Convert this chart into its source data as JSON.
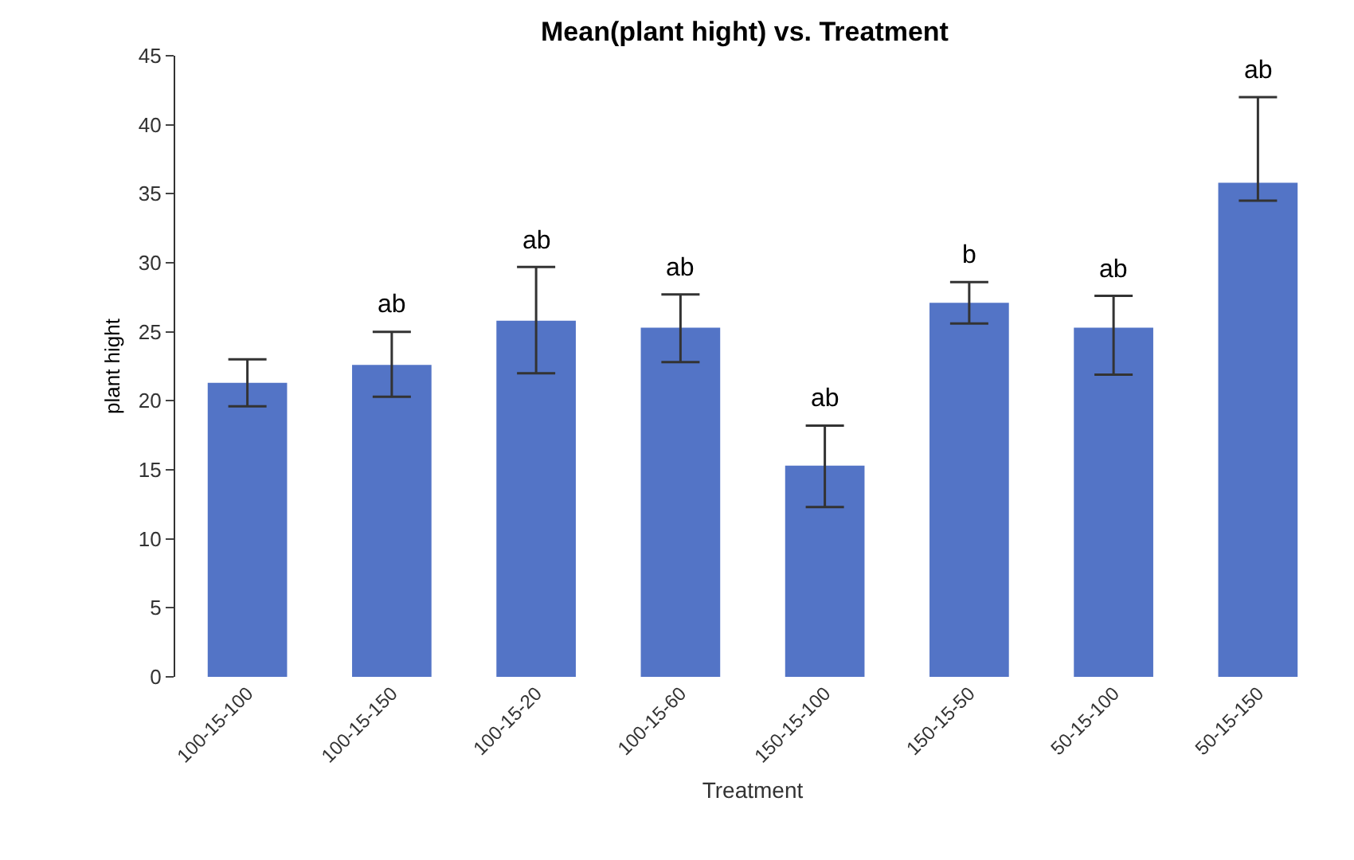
{
  "chart_data": {
    "type": "bar",
    "title": "Mean(plant hight) vs. Treatment",
    "xlabel": "Treatment",
    "ylabel": "plant hight",
    "categories": [
      "100-15-100",
      "100-15-150",
      "100-15-20",
      "100-15-60",
      "150-15-100",
      "150-15-50",
      "50-15-100",
      "50-15-150"
    ],
    "values": [
      21.3,
      22.6,
      25.8,
      25.3,
      15.3,
      27.1,
      25.3,
      35.8
    ],
    "errors": [
      [
        19.6,
        23.0
      ],
      [
        20.3,
        25.0
      ],
      [
        22.0,
        29.7
      ],
      [
        22.8,
        27.7
      ],
      [
        12.3,
        18.2
      ],
      [
        25.6,
        28.6
      ],
      [
        21.9,
        27.6
      ],
      [
        34.5,
        42.0
      ]
    ],
    "color": "#5374c6",
    "ylim": [
      0,
      45
    ],
    "yticks": [
      0,
      5,
      10,
      15,
      20,
      25,
      30,
      35,
      40,
      45
    ],
    "grid": false,
    "annotations": [
      "ab",
      "ab",
      "ab",
      "ab",
      "b",
      "ab",
      "ab"
    ]
  }
}
